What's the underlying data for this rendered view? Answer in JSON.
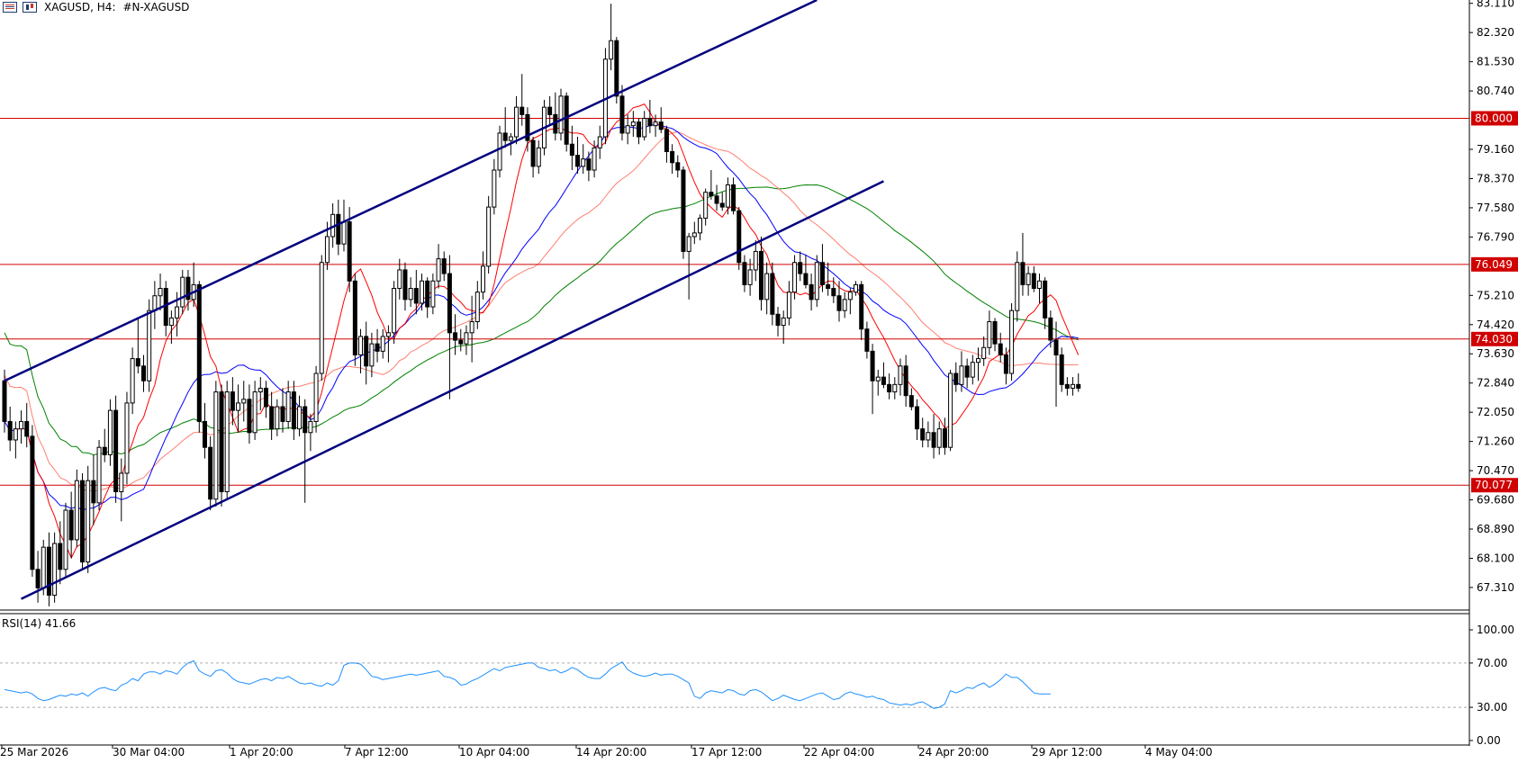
{
  "header": {
    "symbol_timeframe": "XAGUSD, H4:",
    "description": "#N-XAGUSD"
  },
  "rsi_label": "RSI(14) 41.66",
  "colors": {
    "channel": "#00007f",
    "level_line": "#d00000",
    "level_badge": "#d00000",
    "ma_fast": "#ff0000",
    "ma_mid_blue": "#0000ff",
    "ma_mid_salmon": "#ff7f6f",
    "ma_slow": "#008000",
    "rsi_line": "#1e90ff",
    "candle_up": "#ffffff",
    "candle_down": "#000000"
  },
  "chart_data": {
    "type": "candlestick",
    "symbol": "XAGUSD",
    "timeframe": "H4",
    "price_axis_ticks": [
      "83.110",
      "82.320",
      "81.530",
      "80.740",
      "79.160",
      "78.370",
      "77.580",
      "76.790",
      "75.210",
      "74.420",
      "73.630",
      "72.840",
      "72.050",
      "71.260",
      "70.470",
      "69.680",
      "68.890",
      "68.100",
      "67.310"
    ],
    "price_range": [
      66.7,
      83.2
    ],
    "time_labels": [
      "25 Mar 2026",
      "30 Mar 04:00",
      "1 Apr 20:00",
      "7 Apr 12:00",
      "10 Apr 04:00",
      "14 Apr 20:00",
      "17 Apr 12:00",
      "22 Apr 04:00",
      "24 Apr 20:00",
      "29 Apr 12:00",
      "4 May 04:00"
    ],
    "horizontal_levels": [
      {
        "price": "80.000"
      },
      {
        "price": "76.049"
      },
      {
        "price": "74.030"
      },
      {
        "price": "70.077"
      }
    ],
    "channel": {
      "upper": {
        "start_bar": 0,
        "start_price": 72.9,
        "end_bar": 146,
        "end_price": 83.2
      },
      "lower": {
        "start_bar": 3,
        "start_price": 67.0,
        "end_bar": 158,
        "end_price": 78.3
      }
    },
    "rsi": {
      "period": 14,
      "last": 41.66,
      "axis_ticks": [
        "100.00",
        "70.00",
        "30.00",
        "0.00"
      ],
      "range": [
        0,
        100
      ],
      "levels": [
        70,
        30
      ],
      "values": [
        46,
        45,
        44,
        43,
        44,
        42,
        38,
        36,
        37,
        39,
        41,
        40,
        42,
        41,
        43,
        40,
        44,
        47,
        48,
        46,
        45,
        50,
        52,
        56,
        54,
        60,
        62,
        62,
        60,
        63,
        62,
        60,
        66,
        70,
        72,
        63,
        60,
        58,
        63,
        64,
        61,
        56,
        53,
        52,
        51,
        53,
        55,
        56,
        54,
        57,
        56,
        58,
        55,
        52,
        51,
        52,
        50,
        49,
        52,
        50,
        54,
        68,
        70,
        70,
        69,
        64,
        58,
        57,
        55,
        56,
        57,
        58,
        59,
        60,
        59,
        60,
        61,
        62,
        63,
        58,
        57,
        55,
        50,
        51,
        54,
        56,
        59,
        62,
        65,
        63,
        66,
        67,
        68,
        69,
        70,
        70,
        66,
        65,
        63,
        64,
        61,
        63,
        66,
        64,
        60,
        57,
        56,
        56,
        60,
        65,
        68,
        71,
        64,
        61,
        59,
        58,
        59,
        61,
        59,
        60,
        60,
        58,
        55,
        52,
        40,
        38,
        43,
        45,
        44,
        43,
        46,
        45,
        42,
        41,
        45,
        46,
        44,
        40,
        36,
        38,
        41,
        39,
        37,
        36,
        38,
        40,
        42,
        43,
        40,
        37,
        38,
        42,
        44,
        42,
        41,
        39,
        40,
        38,
        37,
        34,
        33,
        32,
        33,
        32,
        34,
        35,
        32,
        29,
        30,
        33,
        45,
        43,
        45,
        48,
        47,
        50,
        52,
        48,
        51,
        55,
        60,
        57,
        57,
        53,
        48,
        43,
        42,
        42,
        42
      ]
    },
    "candles": [
      [
        72.9,
        73.2,
        71.5,
        71.8
      ],
      [
        71.8,
        72.2,
        71.0,
        71.3
      ],
      [
        71.3,
        71.8,
        70.8,
        71.6
      ],
      [
        71.6,
        72.1,
        71.2,
        71.8
      ],
      [
        71.8,
        72.3,
        71.1,
        71.4
      ],
      [
        71.4,
        71.7,
        67.6,
        67.8
      ],
      [
        67.8,
        68.3,
        66.9,
        67.3
      ],
      [
        67.3,
        68.6,
        67.1,
        68.4
      ],
      [
        68.4,
        68.8,
        66.8,
        67.1
      ],
      [
        67.1,
        68.8,
        66.9,
        68.5
      ],
      [
        68.5,
        69.1,
        67.4,
        67.8
      ],
      [
        67.8,
        69.6,
        67.6,
        69.4
      ],
      [
        69.4,
        69.9,
        68.1,
        68.6
      ],
      [
        68.6,
        70.5,
        68.4,
        70.2
      ],
      [
        70.2,
        70.4,
        67.8,
        68.0
      ],
      [
        68.0,
        70.6,
        67.7,
        70.2
      ],
      [
        70.2,
        70.9,
        69.0,
        69.6
      ],
      [
        69.6,
        71.3,
        69.4,
        71.1
      ],
      [
        71.1,
        71.6,
        70.7,
        70.9
      ],
      [
        70.9,
        72.4,
        70.6,
        72.1
      ],
      [
        72.1,
        72.5,
        69.6,
        69.9
      ],
      [
        69.9,
        70.8,
        69.1,
        70.4
      ],
      [
        70.4,
        72.6,
        70.1,
        72.3
      ],
      [
        72.3,
        73.8,
        72.0,
        73.5
      ],
      [
        73.5,
        74.6,
        73.1,
        73.3
      ],
      [
        73.3,
        73.6,
        72.6,
        72.9
      ],
      [
        72.9,
        75.1,
        72.6,
        74.8
      ],
      [
        74.8,
        75.6,
        74.3,
        75.2
      ],
      [
        75.2,
        75.8,
        74.8,
        75.4
      ],
      [
        75.4,
        75.6,
        74.1,
        74.4
      ],
      [
        74.4,
        74.8,
        73.9,
        74.6
      ],
      [
        74.6,
        75.3,
        74.1,
        74.9
      ],
      [
        74.9,
        75.9,
        74.7,
        75.7
      ],
      [
        75.7,
        75.9,
        74.8,
        75.1
      ],
      [
        75.1,
        76.1,
        74.9,
        75.5
      ],
      [
        75.5,
        75.6,
        71.5,
        71.8
      ],
      [
        71.8,
        72.3,
        70.8,
        71.1
      ],
      [
        71.1,
        71.4,
        69.4,
        69.7
      ],
      [
        69.7,
        72.9,
        69.5,
        72.6
      ],
      [
        72.6,
        72.8,
        69.5,
        69.9
      ],
      [
        69.9,
        72.9,
        69.7,
        72.6
      ],
      [
        72.6,
        73.0,
        71.7,
        72.1
      ],
      [
        72.1,
        72.8,
        71.5,
        72.3
      ],
      [
        72.3,
        72.9,
        71.8,
        72.4
      ],
      [
        72.4,
        72.8,
        71.2,
        71.5
      ],
      [
        71.5,
        72.9,
        71.3,
        72.6
      ],
      [
        72.6,
        73.0,
        72.1,
        72.7
      ],
      [
        72.7,
        72.9,
        71.9,
        72.2
      ],
      [
        72.2,
        72.6,
        71.3,
        71.6
      ],
      [
        71.6,
        72.4,
        71.4,
        72.2
      ],
      [
        72.2,
        72.7,
        71.5,
        71.8
      ],
      [
        71.8,
        72.9,
        71.6,
        72.6
      ],
      [
        72.6,
        72.9,
        71.3,
        71.6
      ],
      [
        71.6,
        72.5,
        71.4,
        72.2
      ],
      [
        72.2,
        72.4,
        69.6,
        71.5
      ],
      [
        71.5,
        72.0,
        71.0,
        71.8
      ],
      [
        71.8,
        73.3,
        71.5,
        73.1
      ],
      [
        73.1,
        76.3,
        72.9,
        76.1
      ],
      [
        76.1,
        77.2,
        75.9,
        76.8
      ],
      [
        76.8,
        77.7,
        76.5,
        77.4
      ],
      [
        77.4,
        77.8,
        76.3,
        76.6
      ],
      [
        76.6,
        77.8,
        76.4,
        77.2
      ],
      [
        77.2,
        77.6,
        75.3,
        75.6
      ],
      [
        75.6,
        75.8,
        73.3,
        73.6
      ],
      [
        73.6,
        74.3,
        73.1,
        74.1
      ],
      [
        74.1,
        74.5,
        72.8,
        73.3
      ],
      [
        73.3,
        74.2,
        73.0,
        73.9
      ],
      [
        73.9,
        74.3,
        73.4,
        73.7
      ],
      [
        73.7,
        74.3,
        73.5,
        74.1
      ],
      [
        74.1,
        74.4,
        73.4,
        74.2
      ],
      [
        74.2,
        75.6,
        73.9,
        75.4
      ],
      [
        75.4,
        76.2,
        75.1,
        75.9
      ],
      [
        75.9,
        76.1,
        74.8,
        75.1
      ],
      [
        75.1,
        75.7,
        74.9,
        75.4
      ],
      [
        75.4,
        75.9,
        74.7,
        75.0
      ],
      [
        75.0,
        75.8,
        74.8,
        75.6
      ],
      [
        75.6,
        75.7,
        74.6,
        74.9
      ],
      [
        74.9,
        75.8,
        74.7,
        75.6
      ],
      [
        75.6,
        76.6,
        75.4,
        76.2
      ],
      [
        76.2,
        76.4,
        75.6,
        75.8
      ],
      [
        75.8,
        76.3,
        72.4,
        74.2
      ],
      [
        74.2,
        74.7,
        73.6,
        74.0
      ],
      [
        74.0,
        74.3,
        73.7,
        73.9
      ],
      [
        73.9,
        74.4,
        73.6,
        74.2
      ],
      [
        74.2,
        75.2,
        73.4,
        74.5
      ],
      [
        74.5,
        75.6,
        74.3,
        75.3
      ],
      [
        75.3,
        76.4,
        75.1,
        76.0
      ],
      [
        76.0,
        77.9,
        75.8,
        77.6
      ],
      [
        77.6,
        78.9,
        77.4,
        78.6
      ],
      [
        78.6,
        79.8,
        78.4,
        79.6
      ],
      [
        79.6,
        80.3,
        79.2,
        79.4
      ],
      [
        79.4,
        79.6,
        79.0,
        79.5
      ],
      [
        79.5,
        80.6,
        79.3,
        80.3
      ],
      [
        80.3,
        81.2,
        79.8,
        80.1
      ],
      [
        80.1,
        80.3,
        79.1,
        79.4
      ],
      [
        79.4,
        79.5,
        78.4,
        78.7
      ],
      [
        78.7,
        79.4,
        78.5,
        79.2
      ],
      [
        79.2,
        80.5,
        79.0,
        80.3
      ],
      [
        80.3,
        80.6,
        79.8,
        80.1
      ],
      [
        80.1,
        80.7,
        79.4,
        79.6
      ],
      [
        79.6,
        80.8,
        79.4,
        80.6
      ],
      [
        80.6,
        80.7,
        79.1,
        79.3
      ],
      [
        79.3,
        79.8,
        78.6,
        79.0
      ],
      [
        79.0,
        79.5,
        78.5,
        78.7
      ],
      [
        78.7,
        79.3,
        78.5,
        78.9
      ],
      [
        78.9,
        79.1,
        78.3,
        78.6
      ],
      [
        78.6,
        79.4,
        78.4,
        79.2
      ],
      [
        79.2,
        79.8,
        78.9,
        79.5
      ],
      [
        79.5,
        81.9,
        79.3,
        81.6
      ],
      [
        81.6,
        83.1,
        81.3,
        82.1
      ],
      [
        82.1,
        82.2,
        80.4,
        80.6
      ],
      [
        80.6,
        80.9,
        79.4,
        79.6
      ],
      [
        79.6,
        80.1,
        79.3,
        79.8
      ],
      [
        79.8,
        80.2,
        79.5,
        79.9
      ],
      [
        79.9,
        80.0,
        79.3,
        79.5
      ],
      [
        79.5,
        80.2,
        79.4,
        80.0
      ],
      [
        80.0,
        80.5,
        79.6,
        79.8
      ],
      [
        79.8,
        80.1,
        79.5,
        79.9
      ],
      [
        79.9,
        80.3,
        79.6,
        79.7
      ],
      [
        79.7,
        79.8,
        78.8,
        79.1
      ],
      [
        79.1,
        79.3,
        78.5,
        78.8
      ],
      [
        78.8,
        79.0,
        78.4,
        78.6
      ],
      [
        78.6,
        78.7,
        76.2,
        76.4
      ],
      [
        76.4,
        76.9,
        75.1,
        76.8
      ],
      [
        76.8,
        77.2,
        76.6,
        76.9
      ],
      [
        76.9,
        77.4,
        76.7,
        77.3
      ],
      [
        77.3,
        78.1,
        77.1,
        78.0
      ],
      [
        78.0,
        78.6,
        77.8,
        77.9
      ],
      [
        77.9,
        78.2,
        77.5,
        77.7
      ],
      [
        77.7,
        78.0,
        77.5,
        77.6
      ],
      [
        77.6,
        78.4,
        77.4,
        78.2
      ],
      [
        78.2,
        78.4,
        77.4,
        77.5
      ],
      [
        77.5,
        77.6,
        75.9,
        76.1
      ],
      [
        76.1,
        76.3,
        75.3,
        75.5
      ],
      [
        75.5,
        76.2,
        75.2,
        75.9
      ],
      [
        75.9,
        76.7,
        75.6,
        76.4
      ],
      [
        76.4,
        76.8,
        74.8,
        75.1
      ],
      [
        75.1,
        76.1,
        74.7,
        75.8
      ],
      [
        75.8,
        76.1,
        74.4,
        74.7
      ],
      [
        74.7,
        74.9,
        74.1,
        74.4
      ],
      [
        74.4,
        74.8,
        73.9,
        74.6
      ],
      [
        74.6,
        75.6,
        74.4,
        75.3
      ],
      [
        75.3,
        76.3,
        75.1,
        76.1
      ],
      [
        76.1,
        76.4,
        75.6,
        75.8
      ],
      [
        75.8,
        76.3,
        75.4,
        75.5
      ],
      [
        75.5,
        75.8,
        74.8,
        75.1
      ],
      [
        75.1,
        76.3,
        74.9,
        76.1
      ],
      [
        76.1,
        76.6,
        75.3,
        75.5
      ],
      [
        75.5,
        76.1,
        75.2,
        75.4
      ],
      [
        75.4,
        75.7,
        75.0,
        75.2
      ],
      [
        75.2,
        75.6,
        74.5,
        74.8
      ],
      [
        74.8,
        75.3,
        74.6,
        75.1
      ],
      [
        75.1,
        75.4,
        74.7,
        75.3
      ],
      [
        75.3,
        75.6,
        75.2,
        75.5
      ],
      [
        75.5,
        75.6,
        74.0,
        74.3
      ],
      [
        74.3,
        74.5,
        73.5,
        73.7
      ],
      [
        73.7,
        73.9,
        72.0,
        72.9
      ],
      [
        72.9,
        73.2,
        72.5,
        73.0
      ],
      [
        73.0,
        73.4,
        72.7,
        72.8
      ],
      [
        72.8,
        73.1,
        72.4,
        72.6
      ],
      [
        72.6,
        73.0,
        72.4,
        72.8
      ],
      [
        72.8,
        73.5,
        72.5,
        73.3
      ],
      [
        73.3,
        73.6,
        72.2,
        72.5
      ],
      [
        72.5,
        72.7,
        72.1,
        72.2
      ],
      [
        72.2,
        72.4,
        71.3,
        71.6
      ],
      [
        71.6,
        71.9,
        71.1,
        71.3
      ],
      [
        71.3,
        71.8,
        71.1,
        71.5
      ],
      [
        71.5,
        72.0,
        70.8,
        71.1
      ],
      [
        71.1,
        71.8,
        70.9,
        71.6
      ],
      [
        71.6,
        71.9,
        70.9,
        71.1
      ],
      [
        71.1,
        73.2,
        71.0,
        73.1
      ],
      [
        73.1,
        73.4,
        72.6,
        72.8
      ],
      [
        72.8,
        73.7,
        72.6,
        73.3
      ],
      [
        73.3,
        73.5,
        72.7,
        73.0
      ],
      [
        73.0,
        73.6,
        72.8,
        73.4
      ],
      [
        73.4,
        73.8,
        72.9,
        73.5
      ],
      [
        73.5,
        74.1,
        73.3,
        73.8
      ],
      [
        73.8,
        74.8,
        73.6,
        74.5
      ],
      [
        74.5,
        74.6,
        73.7,
        73.9
      ],
      [
        73.9,
        74.2,
        73.4,
        73.6
      ],
      [
        73.6,
        73.8,
        72.8,
        73.1
      ],
      [
        73.1,
        75.0,
        72.9,
        74.8
      ],
      [
        74.8,
        76.4,
        74.5,
        76.1
      ],
      [
        76.1,
        76.9,
        75.2,
        75.5
      ],
      [
        75.5,
        76.0,
        75.2,
        75.8
      ],
      [
        75.8,
        76.0,
        75.3,
        75.4
      ],
      [
        75.4,
        75.8,
        75.0,
        75.6
      ],
      [
        75.6,
        75.7,
        74.3,
        74.6
      ],
      [
        74.6,
        74.8,
        73.8,
        74.0
      ],
      [
        74.0,
        74.5,
        72.2,
        73.6
      ],
      [
        73.6,
        73.8,
        72.6,
        72.8
      ],
      [
        72.8,
        73.0,
        72.5,
        72.7
      ],
      [
        72.7,
        73.0,
        72.5,
        72.8
      ],
      [
        72.8,
        73.1,
        72.6,
        72.7
      ]
    ]
  }
}
